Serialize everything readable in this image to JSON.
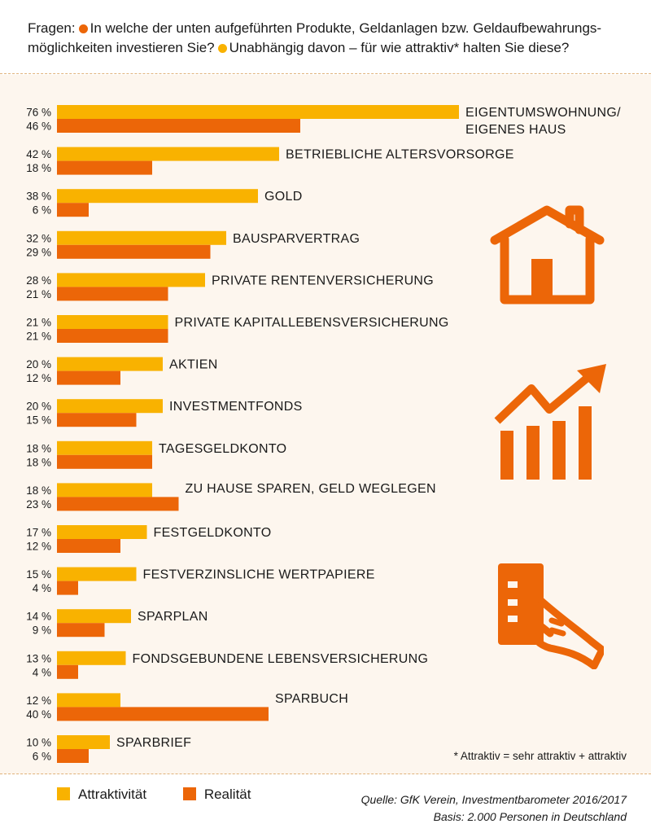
{
  "question": {
    "prefix": "Fragen:",
    "line1_a": "In welche der unten aufgeführten Produkte, Geldanlagen bzw. Geldaufbewahrungs-",
    "line2_a": "möglichkeiten investieren Sie?",
    "line2_b": "Unabhängig davon – für wie attraktiv* halten Sie diese?"
  },
  "colors": {
    "attraktivitaet": "#f9b200",
    "realitaet": "#ec6608",
    "icon": "#ec6608"
  },
  "chart_data": {
    "type": "bar",
    "orientation": "horizontal",
    "unit": "%",
    "categories": [
      [
        "EIGENTUMSWOHNUNG/",
        "EIGENES HAUS"
      ],
      [
        "BETRIEBLICHE ALTERSVORSORGE"
      ],
      [
        "GOLD"
      ],
      [
        "BAUSPARVERTRAG"
      ],
      [
        "PRIVATE RENTENVERSICHERUNG"
      ],
      [
        "PRIVATE KAPITALLEBENSVERSICHERUNG"
      ],
      [
        "AKTIEN"
      ],
      [
        "INVESTMENTFONDS"
      ],
      [
        "TAGESGELDKONTO"
      ],
      [
        "ZU HAUSE SPAREN, GELD WEGLEGEN"
      ],
      [
        "FESTGELDKONTO"
      ],
      [
        "FESTVERZINSLICHE WERTPAPIERE"
      ],
      [
        "SPARPLAN"
      ],
      [
        "FONDSGEBUNDENE LEBENSVERSICHERUNG"
      ],
      [
        "SPARBUCH"
      ],
      [
        "SPARBRIEF"
      ]
    ],
    "series": [
      {
        "name": "Attraktivität",
        "values": [
          76,
          42,
          38,
          32,
          28,
          21,
          20,
          20,
          18,
          18,
          17,
          15,
          14,
          13,
          12,
          10
        ]
      },
      {
        "name": "Realität",
        "values": [
          46,
          18,
          6,
          29,
          21,
          21,
          12,
          15,
          18,
          23,
          12,
          4,
          9,
          4,
          40,
          6
        ]
      }
    ],
    "xlim": [
      0,
      76
    ],
    "legend": "bottom-left"
  },
  "icons": [
    "house-icon",
    "growth-chart-icon",
    "card-in-hand-icon"
  ],
  "footnote": "* Attraktiv = sehr attraktiv + attraktiv",
  "legend": {
    "attraktivitaet": "Attraktivität",
    "realitaet": "Realität"
  },
  "source": {
    "line1": "Quelle: GfK Verein, Investmentbarometer 2016/2017",
    "line2": "Basis: 2.000 Personen in Deutschland"
  }
}
